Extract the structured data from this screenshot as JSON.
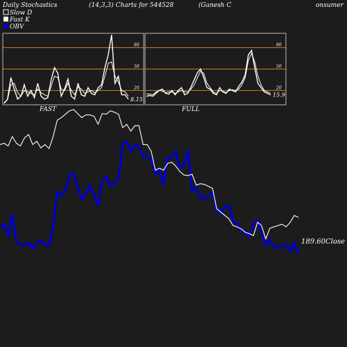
{
  "header": {
    "left": "Daily Stochastics",
    "center": "(14,3,3) Charts for 544528",
    "right": "(Ganesh C",
    "far_right": "onsumer"
  },
  "legend": [
    {
      "label": "Slow  D",
      "color": "#ffffff"
    },
    {
      "label": "Fast K",
      "color": "#ffffff"
    },
    {
      "label": "OBV",
      "color": "#0000cc"
    }
  ],
  "colors": {
    "background": "#1c1c1c",
    "level_line": "#c8841c",
    "obv": "#0000cc",
    "price": "#ffffff"
  },
  "close_label": "189.60Close",
  "chart_data": [
    {
      "type": "line",
      "title": "FAST",
      "ylim": [
        0,
        100
      ],
      "yticks": [
        20,
        50,
        80
      ],
      "last_value_label": "8.15",
      "series": [
        {
          "name": "Slow  D",
          "values": [
            3,
            7,
            28,
            30,
            17,
            12,
            20,
            18,
            16,
            14,
            22,
            17,
            14,
            12,
            26,
            40,
            38,
            22,
            20,
            30,
            20,
            14,
            25,
            22,
            16,
            18,
            20,
            17,
            20,
            24,
            40,
            58,
            60,
            40,
            32,
            20,
            18,
            12
          ]
        },
        {
          "name": "Fast K",
          "values": [
            2,
            8,
            38,
            22,
            8,
            12,
            28,
            12,
            20,
            10,
            30,
            12,
            8,
            10,
            35,
            52,
            44,
            12,
            22,
            36,
            12,
            8,
            30,
            14,
            12,
            24,
            16,
            14,
            24,
            28,
            52,
            70,
            98,
            30,
            40,
            14,
            14,
            8
          ]
        }
      ]
    },
    {
      "type": "line",
      "title": "FULL",
      "ylim": [
        0,
        100
      ],
      "yticks": [
        20,
        50,
        80
      ],
      "last_value_label": "15.9",
      "series": [
        {
          "series_index": 0,
          "values": [
            15,
            15,
            14,
            18,
            20,
            19,
            17,
            18,
            18,
            16,
            18,
            20,
            18,
            18,
            22,
            28,
            38,
            47,
            44,
            30,
            24,
            18,
            16,
            20,
            19,
            17,
            20,
            21,
            20,
            22,
            28,
            38,
            62,
            72,
            60,
            40,
            28,
            20,
            18,
            16
          ]
        },
        {
          "series_index": 1,
          "values": [
            12,
            13,
            12,
            16,
            20,
            22,
            16,
            15,
            20,
            14,
            20,
            24,
            14,
            16,
            25,
            35,
            45,
            50,
            38,
            24,
            22,
            16,
            14,
            24,
            18,
            16,
            22,
            20,
            18,
            26,
            32,
            42,
            70,
            76,
            52,
            30,
            24,
            18,
            16,
            14
          ]
        }
      ]
    },
    {
      "type": "line",
      "series": [
        {
          "name": "OBV",
          "values": [
            180,
            182,
            165,
            196,
            156,
            152,
            150,
            155,
            145,
            155,
            158,
            152,
            150,
            178,
            230,
            225,
            232,
            255,
            258,
            236,
            218,
            228,
            240,
            225,
            210,
            246,
            252,
            238,
            242,
            250,
            300,
            305,
            290,
            300,
            298,
            282,
            284,
            278,
            256,
            262,
            240,
            282,
            280,
            290,
            265,
            270,
            292,
            232,
            236,
            222,
            220,
            225,
            228,
            202,
            198,
            208,
            210,
            185,
            184,
            172,
            170,
            164,
            182,
            188,
            168,
            150,
            160,
            148,
            146,
            150,
            152,
            142,
            155,
            138
          ]
        },
        {
          "name": "Close",
          "values": [
            300,
            302,
            298,
            312,
            302,
            298,
            310,
            315,
            300,
            305,
            295,
            300,
            294,
            312,
            336,
            340,
            345,
            350,
            352,
            346,
            340,
            344,
            344,
            342,
            330,
            346,
            345,
            350,
            348,
            345,
            325,
            330,
            320,
            328,
            328,
            300,
            300,
            290,
            262,
            265,
            262,
            272,
            274,
            268,
            260,
            255,
            254,
            256,
            240,
            242,
            241,
            238,
            235,
            205,
            200,
            195,
            190,
            180,
            178,
            175,
            170,
            168,
            165,
            185,
            180,
            160,
            176,
            178,
            180,
            182,
            178,
            185,
            195,
            192
          ]
        }
      ]
    }
  ]
}
